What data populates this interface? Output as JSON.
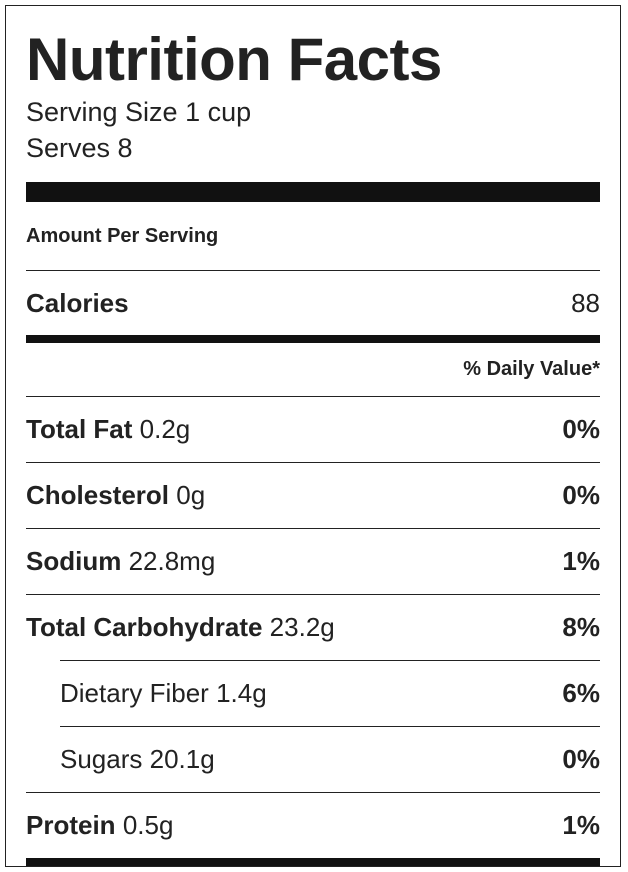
{
  "title": "Nutrition Facts",
  "serving_size": "Serving Size 1 cup",
  "serves": "Serves 8",
  "amount_per_serving": "Amount Per Serving",
  "calories": {
    "label": "Calories",
    "value": "88"
  },
  "daily_value_header": "% Daily Value*",
  "nutrients": [
    {
      "name": "Total Fat",
      "amount": "0.2g",
      "dv": "0%"
    },
    {
      "name": "Cholesterol",
      "amount": "0g",
      "dv": "0%"
    },
    {
      "name": "Sodium",
      "amount": "22.8mg",
      "dv": "1%"
    },
    {
      "name": "Total Carbohydrate",
      "amount": "23.2g",
      "dv": "8%"
    }
  ],
  "sub_nutrients": [
    {
      "name": "Dietary Fiber",
      "amount": "1.4g",
      "dv": "6%"
    },
    {
      "name": "Sugars",
      "amount": "20.1g",
      "dv": "0%"
    }
  ],
  "protein": {
    "name": "Protein",
    "amount": "0.5g",
    "dv": "1%"
  }
}
